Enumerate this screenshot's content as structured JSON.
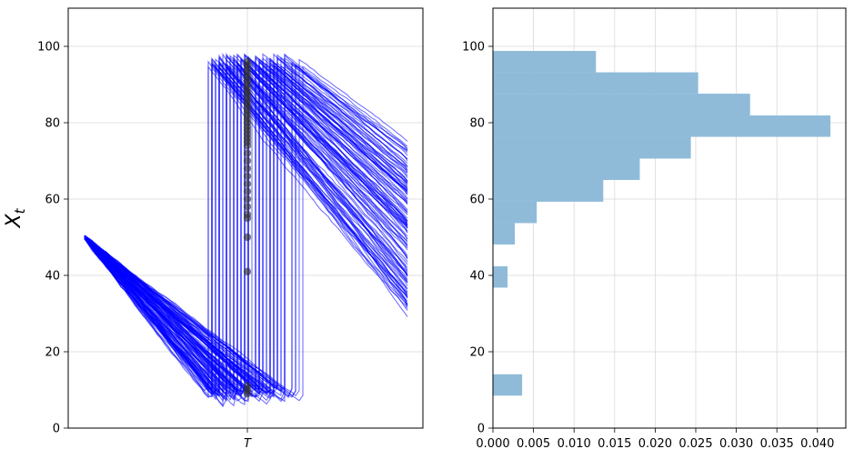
{
  "chart_data": [
    {
      "type": "line",
      "ylabel": "X_t",
      "ylim": [
        0,
        110
      ],
      "yticks": [
        0,
        20,
        40,
        60,
        80,
        100
      ],
      "x_tick_label": "T",
      "grid": true,
      "series_color": "#0000ff",
      "point_color": "#333333",
      "n_paths": 120,
      "path_start": 50,
      "sawtooth_min": 5,
      "sawtooth_max": 98,
      "end_values": [
        96,
        95,
        94,
        93,
        92,
        91,
        90,
        89,
        88,
        87,
        86,
        85,
        84,
        83,
        82,
        81,
        80,
        79,
        78,
        77,
        76,
        75,
        74,
        72,
        70,
        68,
        66,
        64,
        62,
        60,
        58,
        56,
        55,
        50,
        41,
        11,
        10,
        9
      ]
    },
    {
      "type": "bar",
      "orientation": "horizontal",
      "ylim": [
        0,
        110
      ],
      "xlim": [
        0,
        0.0435
      ],
      "yticks": [
        0,
        20,
        40,
        60,
        80,
        100
      ],
      "xticks": [
        0.0,
        0.005,
        0.01,
        0.015,
        0.02,
        0.025,
        0.03,
        0.035,
        0.04
      ],
      "xtick_labels": [
        "0.000",
        "0.005",
        "0.010",
        "0.015",
        "0.020",
        "0.025",
        "0.030",
        "0.035",
        "0.040"
      ],
      "grid": true,
      "bar_color": "#8fbbd9",
      "bins": [
        {
          "low": 8.5,
          "high": 14.1,
          "density": 0.0036
        },
        {
          "low": 36.8,
          "high": 42.4,
          "density": 0.0018
        },
        {
          "low": 48.1,
          "high": 53.7,
          "density": 0.0027
        },
        {
          "low": 53.7,
          "high": 59.3,
          "density": 0.0054
        },
        {
          "low": 59.3,
          "high": 65.0,
          "density": 0.0136
        },
        {
          "low": 65.0,
          "high": 70.6,
          "density": 0.0181
        },
        {
          "low": 70.6,
          "high": 76.3,
          "density": 0.0244
        },
        {
          "low": 76.3,
          "high": 81.9,
          "density": 0.0416
        },
        {
          "low": 81.9,
          "high": 87.6,
          "density": 0.0317
        },
        {
          "low": 87.6,
          "high": 93.2,
          "density": 0.0253
        },
        {
          "low": 93.2,
          "high": 98.8,
          "density": 0.0127
        }
      ]
    }
  ]
}
